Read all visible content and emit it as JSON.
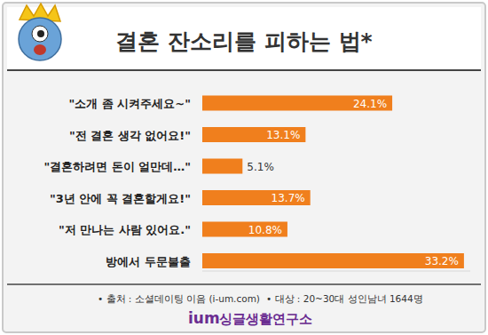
{
  "chart_data": {
    "type": "bar",
    "orientation": "horizontal",
    "title": "결혼 잔소리를 피하는 법*",
    "categories": [
      "\"소개 좀 시켜주세요~\"",
      "\"전 결혼 생각 없어요!\"",
      "\"결혼하려면 돈이 얼만데…\"",
      "\"3년 안에 꼭 결혼할게요!\"",
      "\"저 만나는 사람 있어요.\"",
      "방에서 두문불출"
    ],
    "values": [
      24.1,
      13.1,
      5.1,
      13.7,
      10.8,
      33.2
    ],
    "value_labels": [
      "24.1%",
      "13.1%",
      "5.1%",
      "13.7%",
      "10.8%",
      "33.2%"
    ],
    "color": "#f07f1d",
    "xlim": [
      0,
      34
    ],
    "data_labels": true,
    "tick_labels": "y",
    "grid": false,
    "source": "• 출처 : 소셜데이팅 이음 (i-um.com)",
    "note": "• 대상 : 20~30대 성인남녀 1644명",
    "logo": "ium",
    "logo_subtitle": "싱글생활연구소"
  }
}
